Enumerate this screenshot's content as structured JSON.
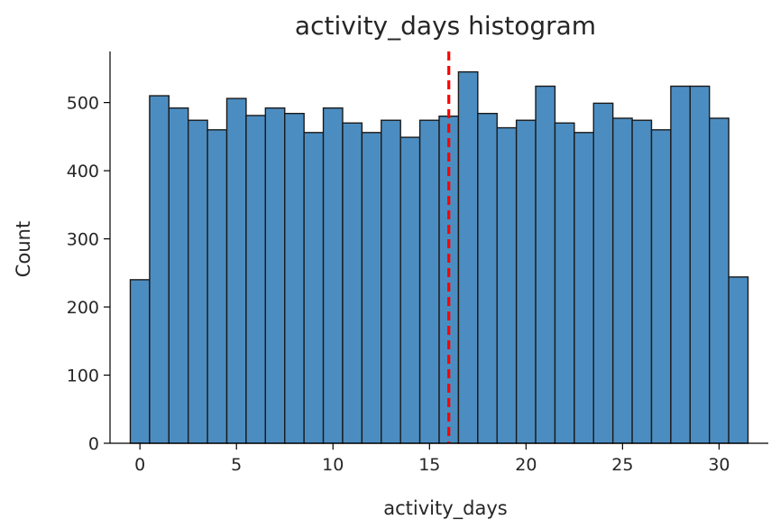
{
  "chart_data": {
    "type": "bar",
    "title": "activity_days histogram",
    "xlabel": "activity_days",
    "ylabel": "Count",
    "xlim": [
      -1.55,
      32.55
    ],
    "ylim": [
      0,
      575
    ],
    "xticks": [
      0,
      5,
      10,
      15,
      20,
      25,
      30
    ],
    "yticks": [
      0,
      100,
      200,
      300,
      400,
      500
    ],
    "bins": [
      {
        "start": -0.5,
        "end": 0.5,
        "count": 240
      },
      {
        "start": 0.5,
        "end": 1.5,
        "count": 510
      },
      {
        "start": 1.5,
        "end": 2.5,
        "count": 492
      },
      {
        "start": 2.5,
        "end": 3.5,
        "count": 474
      },
      {
        "start": 3.5,
        "end": 4.5,
        "count": 460
      },
      {
        "start": 4.5,
        "end": 5.5,
        "count": 506
      },
      {
        "start": 5.5,
        "end": 6.5,
        "count": 481
      },
      {
        "start": 6.5,
        "end": 7.5,
        "count": 492
      },
      {
        "start": 7.5,
        "end": 8.5,
        "count": 484
      },
      {
        "start": 8.5,
        "end": 9.5,
        "count": 456
      },
      {
        "start": 9.5,
        "end": 10.5,
        "count": 492
      },
      {
        "start": 10.5,
        "end": 11.5,
        "count": 470
      },
      {
        "start": 11.5,
        "end": 12.5,
        "count": 456
      },
      {
        "start": 12.5,
        "end": 13.5,
        "count": 474
      },
      {
        "start": 13.5,
        "end": 14.5,
        "count": 449
      },
      {
        "start": 14.5,
        "end": 15.5,
        "count": 474
      },
      {
        "start": 15.5,
        "end": 16.5,
        "count": 480
      },
      {
        "start": 16.5,
        "end": 17.5,
        "count": 545
      },
      {
        "start": 17.5,
        "end": 18.5,
        "count": 484
      },
      {
        "start": 18.5,
        "end": 19.5,
        "count": 463
      },
      {
        "start": 19.5,
        "end": 20.5,
        "count": 474
      },
      {
        "start": 20.5,
        "end": 21.5,
        "count": 524
      },
      {
        "start": 21.5,
        "end": 22.5,
        "count": 470
      },
      {
        "start": 22.5,
        "end": 23.5,
        "count": 456
      },
      {
        "start": 23.5,
        "end": 24.5,
        "count": 499
      },
      {
        "start": 24.5,
        "end": 25.5,
        "count": 477
      },
      {
        "start": 25.5,
        "end": 26.5,
        "count": 474
      },
      {
        "start": 26.5,
        "end": 27.5,
        "count": 460
      },
      {
        "start": 27.5,
        "end": 28.5,
        "count": 524
      },
      {
        "start": 28.5,
        "end": 29.5,
        "count": 524
      },
      {
        "start": 29.5,
        "end": 30.5,
        "count": 477
      },
      {
        "start": 30.5,
        "end": 31.5,
        "count": 244
      }
    ],
    "reference_line": {
      "x": 16,
      "color": "#ff0000",
      "style": "dashed"
    },
    "colors": {
      "bar_fill": "#4c8dc1",
      "bar_edge": "#1a1a1a",
      "text": "#262626",
      "axis": "#000000"
    },
    "grid": false,
    "legend": "none"
  }
}
